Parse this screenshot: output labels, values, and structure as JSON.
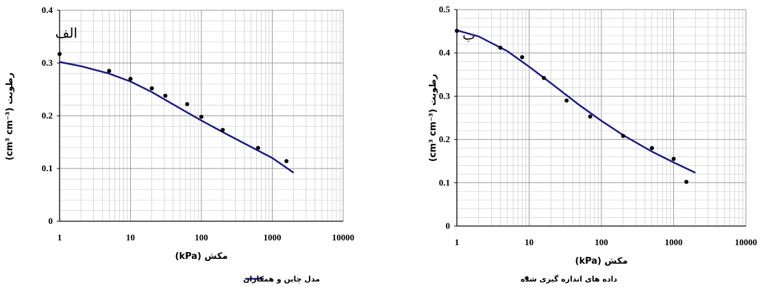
{
  "legend": {
    "model_label": "مدل چاین و همکاران",
    "points_label": "داده های اندازه گیری شده",
    "model_color": "#1a1a7e",
    "points_color": "#000000"
  },
  "chart_data": [
    {
      "type": "scatter",
      "panel_label": "الف",
      "xlabel": "مکش (kPa)",
      "ylabel": "رطوبت (cm³ cm⁻³)",
      "xscale": "log",
      "xlim": [
        1,
        10000
      ],
      "ylim": [
        0,
        0.4
      ],
      "xticks": [
        "1",
        "10",
        "100",
        "1000",
        "10000"
      ],
      "yticks": [
        "0",
        "0.1",
        "0.2",
        "0.3",
        "0.4"
      ],
      "grid": true,
      "measured": {
        "x": [
          1,
          5,
          10,
          20,
          31,
          63,
          100,
          200,
          631,
          1585
        ],
        "y": [
          0.317,
          0.285,
          0.27,
          0.252,
          0.238,
          0.222,
          0.198,
          0.173,
          0.139,
          0.114
        ]
      },
      "model": {
        "x": [
          1,
          2,
          5,
          10,
          20,
          50,
          100,
          200,
          500,
          1000,
          2000
        ],
        "y": [
          0.302,
          0.294,
          0.28,
          0.265,
          0.245,
          0.214,
          0.191,
          0.169,
          0.141,
          0.12,
          0.092
        ]
      }
    },
    {
      "type": "scatter",
      "panel_label": "ب",
      "xlabel": "مکش (kPa)",
      "ylabel": "رطوبت (cm³ cm⁻³)",
      "xscale": "log",
      "xlim": [
        1,
        10000
      ],
      "ylim": [
        0,
        0.5
      ],
      "xticks": [
        "1",
        "10",
        "100",
        "1000",
        "10000"
      ],
      "yticks": [
        "0",
        "0.1",
        "0.2",
        "0.3",
        "0.4",
        "0.5"
      ],
      "grid": true,
      "measured": {
        "x": [
          1,
          4,
          8,
          16,
          33,
          70,
          200,
          500,
          1000,
          1500
        ],
        "y": [
          0.451,
          0.412,
          0.39,
          0.342,
          0.29,
          0.253,
          0.208,
          0.18,
          0.155,
          0.102
        ]
      },
      "model": {
        "x": [
          1,
          2,
          5,
          10,
          20,
          50,
          100,
          200,
          500,
          1000,
          2000
        ],
        "y": [
          0.452,
          0.438,
          0.404,
          0.368,
          0.33,
          0.279,
          0.243,
          0.21,
          0.172,
          0.147,
          0.123
        ]
      }
    }
  ]
}
